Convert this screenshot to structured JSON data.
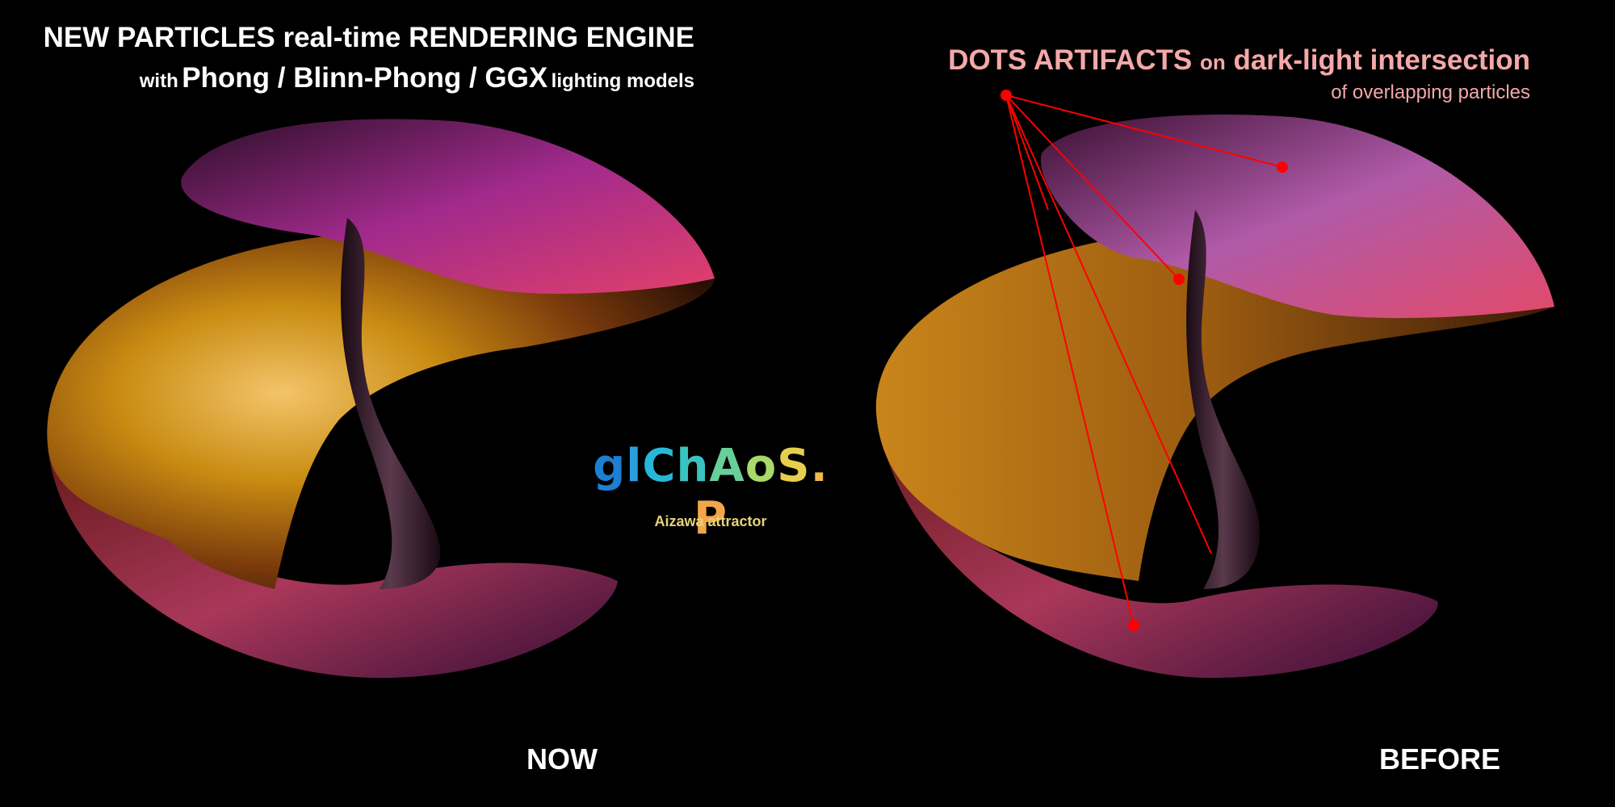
{
  "header_left": {
    "line1": "NEW PARTICLES real-time RENDERING ENGINE",
    "line2_prefix": "with",
    "line2_main": "Phong / Blinn-Phong / GGX",
    "line2_suffix": "lighting models"
  },
  "header_right": {
    "line1_a": "DOTS ARTIFACTS",
    "line1_b": "on",
    "line1_c": "dark-light intersection",
    "line2": "of overlapping particles"
  },
  "logo": {
    "letters": [
      "g",
      "l",
      "C",
      "h",
      "A",
      "o",
      "S",
      ".",
      "P"
    ],
    "colors": [
      "#1d7fd1",
      "#2a9ee0",
      "#27b8d8",
      "#3ac3c0",
      "#68cf9a",
      "#a9d86a",
      "#e6cf4d",
      "#f0b94a",
      "#f2a64b"
    ],
    "caption": "Aizawa attractor"
  },
  "labels": {
    "now": "NOW",
    "before": "BEFORE"
  },
  "colors": {
    "background": "#000000",
    "annotation": "#ff0000",
    "annotation_text": "#f4a8a8",
    "caption": "#e8d27a"
  }
}
